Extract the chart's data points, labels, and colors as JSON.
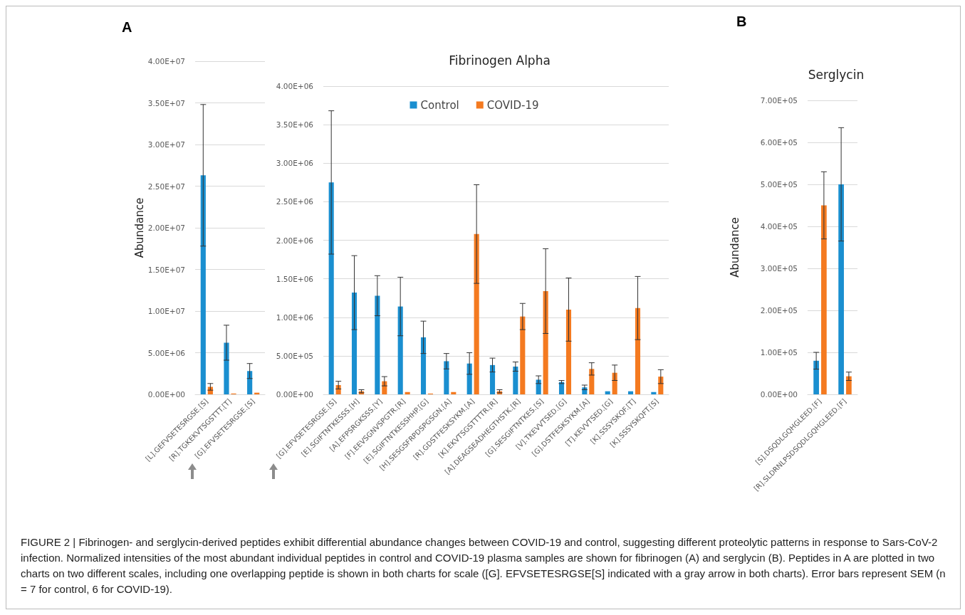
{
  "chart_data": [
    {
      "type": "bar",
      "ylabel": "Abundance",
      "annotations": [
        "A"
      ],
      "categories": [
        "[L].GEFVSETESRGSE.[S]",
        "[R].TGKEKVTSGSTTT.[T]",
        "[G].EFVSETESRGSE.[S]"
      ],
      "series": [
        {
          "color": "#1a8fd0",
          "values": [
            26300000,
            6200000,
            2800000
          ],
          "errors": [
            8500000,
            2100000,
            900000
          ]
        },
        {
          "color": "#f47a20",
          "values": [
            900000,
            100000,
            200000
          ],
          "errors": [
            400000,
            null,
            null
          ]
        }
      ],
      "ylim": [
        0,
        40000000
      ],
      "yticks": [
        {
          "value": 0,
          "label": "0.00E+00"
        },
        {
          "value": 5000000,
          "label": "5.00E+06"
        },
        {
          "value": 10000000,
          "label": "1.00E+07"
        },
        {
          "value": 15000000,
          "label": "1.50E+07"
        },
        {
          "value": 20000000,
          "label": "2.00E+07"
        },
        {
          "value": 25000000,
          "label": "2.50E+07"
        },
        {
          "value": 30000000,
          "label": "3.00E+07"
        },
        {
          "value": 35000000,
          "label": "3.50E+07"
        },
        {
          "value": 40000000,
          "label": "4.00E+07"
        }
      ],
      "grid": "y"
    },
    {
      "type": "bar",
      "title": "Fibrinogen Alpha",
      "categories": [
        "[G].EFVSETESRGSE.[S]",
        "[E].SGIFTNTKESSS.[H]",
        "[A].EFPSRGKSSS.[Y]",
        "[F].EEVSGNVSPGTR.[R]",
        "[E].SGIFTNTKESSHHP.[G]",
        "[H].SESGSFRPDSPGSGN.[A]",
        "[R].GDSTFESKSYKM.[A]",
        "[K].EKVTSGSTTTTR.[R]",
        "[A].DEAGSEADHEGTHSTK.[R]",
        "[G].SESGIFTNTKES.[S]",
        "[V].TKEVVTSED.[G]",
        "[G].DSTFESKSYKM.[A]",
        "[T].KEVVTSED.[G]",
        "[K].SSSYSKQF.[T]",
        "[K].SSSYSKQFT.[S]"
      ],
      "series": [
        {
          "name": "Control",
          "color": "#1a8fd0",
          "values": [
            2750000,
            1320000,
            1280000,
            1140000,
            740000,
            430000,
            400000,
            380000,
            360000,
            190000,
            160000,
            90000,
            40000,
            40000,
            30000
          ],
          "errors": [
            930000,
            480000,
            260000,
            380000,
            210000,
            100000,
            140000,
            90000,
            60000,
            50000,
            20000,
            30000,
            null,
            null,
            null
          ]
        },
        {
          "name": "COVID-19",
          "color": "#f47a20",
          "values": [
            120000,
            40000,
            170000,
            30000,
            10000,
            30000,
            2080000,
            40000,
            1010000,
            1340000,
            1100000,
            330000,
            280000,
            1120000,
            230000
          ],
          "errors": [
            50000,
            20000,
            60000,
            null,
            null,
            null,
            640000,
            20000,
            170000,
            550000,
            410000,
            80000,
            100000,
            410000,
            90000
          ]
        }
      ],
      "ylim": [
        0,
        4000000
      ],
      "yticks": [
        {
          "value": 0,
          "label": "0.00E+00"
        },
        {
          "value": 500000,
          "label": "5.00E+05"
        },
        {
          "value": 1000000,
          "label": "1.00E+06"
        },
        {
          "value": 1500000,
          "label": "1.50E+06"
        },
        {
          "value": 2000000,
          "label": "2.00E+06"
        },
        {
          "value": 2500000,
          "label": "2.50E+06"
        },
        {
          "value": 3000000,
          "label": "3.00E+06"
        },
        {
          "value": 3500000,
          "label": "3.50E+06"
        },
        {
          "value": 4000000,
          "label": "4.00E+06"
        }
      ],
      "grid": "y",
      "legend": "top"
    },
    {
      "type": "bar",
      "title": "Serglycin",
      "ylabel": "Abundance",
      "annotations": [
        "B",
        "FIGURE 2 | Fibrinogen- and serglycin-derived peptides exhibit differential abundance changes between COVID-19 and control, suggesting different proteolytic patterns in response to Sars-CoV-2 infection. Normalized intensities of the most abundant individual peptides in control and COVID-19 plasma samples are shown for fibrinogen (A) and serglycin (B). Peptides in A are plotted in two charts on two different scales, including one overlapping peptide is shown in both charts for scale ([G]. EFVSETESRGSE[S] indicated with a gray arrow in both charts). Error bars represent SEM (n = 7 for control, 6 for COVID-19)."
      ],
      "categories": [
        "[S].DSQDLGQHGLEED.[F]",
        "[R].SLDRNLPSDSQDLGQHGLEED.[F]"
      ],
      "series": [
        {
          "color": "#1a8fd0",
          "values": [
            80000,
            500000
          ],
          "errors": [
            20000,
            135000
          ]
        },
        {
          "color": "#f47a20",
          "values": [
            450000,
            43000
          ],
          "errors": [
            80000,
            10000
          ]
        }
      ],
      "ylim": [
        0,
        700000
      ],
      "yticks": [
        {
          "value": 0,
          "label": "0.00E+00"
        },
        {
          "value": 100000,
          "label": "1.00E+05"
        },
        {
          "value": 200000,
          "label": "2.00E+05"
        },
        {
          "value": 300000,
          "label": "3.00E+05"
        },
        {
          "value": 400000,
          "label": "4.00E+05"
        },
        {
          "value": 500000,
          "label": "5.00E+05"
        },
        {
          "value": 600000,
          "label": "6.00E+05"
        },
        {
          "value": 700000,
          "label": "7.00E+05"
        }
      ],
      "grid": "y"
    }
  ]
}
